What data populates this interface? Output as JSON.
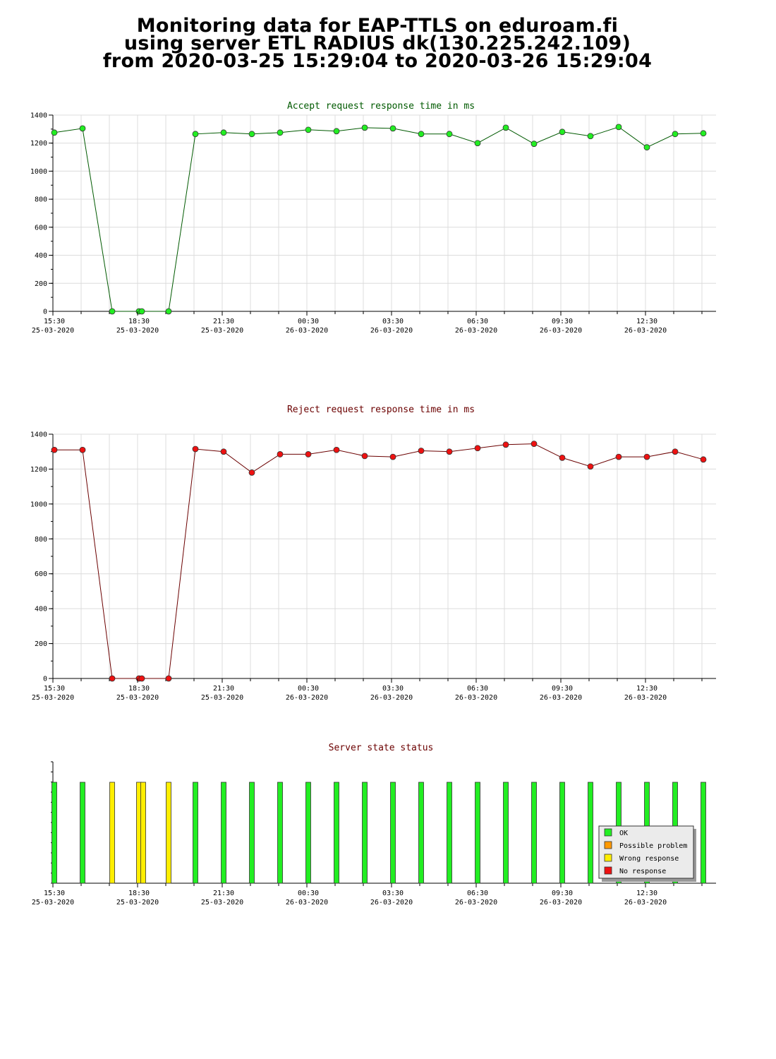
{
  "page": {
    "title_lines": [
      "Monitoring data for EAP-TTLS on eduroam.fi",
      "using server ETL RADIUS dk(130.225.242.109)",
      "from 2020-03-25 15:29:04 to 2020-03-26 15:29:04"
    ]
  },
  "colors": {
    "accept_line": "#005a00",
    "accept_marker": "#22ee22",
    "reject_line": "#6b0000",
    "reject_marker": "#ee1111",
    "accept_title": "#005a00",
    "reject_title": "#6b0000",
    "grid": "#dcdcdc",
    "status_ok": "#22ee22",
    "status_possible": "#ff9900",
    "status_wrong": "#ffee00",
    "status_none": "#ee1111"
  },
  "chart_data": [
    {
      "type": "line",
      "title": "Accept request response time in ms",
      "ylim": [
        0,
        1400
      ],
      "yticks": [
        0,
        200,
        400,
        600,
        800,
        1000,
        1200,
        1400
      ],
      "xlim_hours": [
        15.5,
        39.0
      ],
      "xtick_hours": [
        15.5,
        18.5,
        21.5,
        24.5,
        27.5,
        30.5,
        33.5,
        36.5
      ],
      "xtick_labels": [
        [
          "15:30",
          "25-03-2020"
        ],
        [
          "18:30",
          "25-03-2020"
        ],
        [
          "21:30",
          "25-03-2020"
        ],
        [
          "00:30",
          "26-03-2020"
        ],
        [
          "03:30",
          "26-03-2020"
        ],
        [
          "06:30",
          "26-03-2020"
        ],
        [
          "09:30",
          "26-03-2020"
        ],
        [
          "12:30",
          "26-03-2020"
        ]
      ],
      "grid": true,
      "points": [
        [
          15.55,
          1275
        ],
        [
          16.55,
          1305
        ],
        [
          17.6,
          0
        ],
        [
          18.55,
          0
        ],
        [
          18.65,
          0
        ],
        [
          19.6,
          0
        ],
        [
          20.55,
          1265
        ],
        [
          21.55,
          1275
        ],
        [
          22.55,
          1265
        ],
        [
          23.55,
          1275
        ],
        [
          24.55,
          1295
        ],
        [
          25.55,
          1285
        ],
        [
          26.55,
          1310
        ],
        [
          27.55,
          1305
        ],
        [
          28.55,
          1265
        ],
        [
          29.55,
          1265
        ],
        [
          30.55,
          1200
        ],
        [
          31.55,
          1310
        ],
        [
          32.55,
          1195
        ],
        [
          33.55,
          1280
        ],
        [
          34.55,
          1250
        ],
        [
          35.55,
          1315
        ],
        [
          36.55,
          1170
        ],
        [
          37.55,
          1265
        ],
        [
          38.55,
          1270
        ]
      ]
    },
    {
      "type": "line",
      "title": "Reject request response time in ms",
      "ylim": [
        0,
        1400
      ],
      "yticks": [
        0,
        200,
        400,
        600,
        800,
        1000,
        1200,
        1400
      ],
      "xlim_hours": [
        15.5,
        39.0
      ],
      "xtick_hours": [
        15.5,
        18.5,
        21.5,
        24.5,
        27.5,
        30.5,
        33.5,
        36.5
      ],
      "xtick_labels": [
        [
          "15:30",
          "25-03-2020"
        ],
        [
          "18:30",
          "25-03-2020"
        ],
        [
          "21:30",
          "25-03-2020"
        ],
        [
          "00:30",
          "26-03-2020"
        ],
        [
          "03:30",
          "26-03-2020"
        ],
        [
          "06:30",
          "26-03-2020"
        ],
        [
          "09:30",
          "26-03-2020"
        ],
        [
          "12:30",
          "26-03-2020"
        ]
      ],
      "grid": true,
      "points": [
        [
          15.55,
          1310
        ],
        [
          16.55,
          1310
        ],
        [
          17.6,
          0
        ],
        [
          18.55,
          0
        ],
        [
          18.65,
          0
        ],
        [
          19.6,
          0
        ],
        [
          20.55,
          1315
        ],
        [
          21.55,
          1300
        ],
        [
          22.55,
          1180
        ],
        [
          23.55,
          1285
        ],
        [
          24.55,
          1285
        ],
        [
          25.55,
          1310
        ],
        [
          26.55,
          1275
        ],
        [
          27.55,
          1270
        ],
        [
          28.55,
          1305
        ],
        [
          29.55,
          1300
        ],
        [
          30.55,
          1320
        ],
        [
          31.55,
          1340
        ],
        [
          32.55,
          1345
        ],
        [
          33.55,
          1265
        ],
        [
          34.55,
          1215
        ],
        [
          35.55,
          1270
        ],
        [
          36.55,
          1270
        ],
        [
          37.55,
          1300
        ],
        [
          38.55,
          1255
        ]
      ]
    },
    {
      "type": "bar",
      "title": "Server state status",
      "xlim_hours": [
        15.5,
        39.0
      ],
      "xtick_hours": [
        15.5,
        18.5,
        21.5,
        24.5,
        27.5,
        30.5,
        33.5,
        36.5
      ],
      "xtick_labels": [
        [
          "15:30",
          "25-03-2020"
        ],
        [
          "18:30",
          "25-03-2020"
        ],
        [
          "21:30",
          "25-03-2020"
        ],
        [
          "00:30",
          "26-03-2020"
        ],
        [
          "03:30",
          "26-03-2020"
        ],
        [
          "06:30",
          "26-03-2020"
        ],
        [
          "09:30",
          "26-03-2020"
        ],
        [
          "12:30",
          "26-03-2020"
        ]
      ],
      "legend": {
        "placement": "bottom-right",
        "entries": [
          {
            "label": "OK",
            "status": "ok"
          },
          {
            "label": "Possible problem",
            "status": "possible"
          },
          {
            "label": "Wrong response",
            "status": "wrong"
          },
          {
            "label": "No response",
            "status": "none"
          }
        ]
      },
      "bars": [
        [
          15.55,
          "ok"
        ],
        [
          16.55,
          "ok"
        ],
        [
          17.6,
          "wrong"
        ],
        [
          18.55,
          "wrong"
        ],
        [
          18.7,
          "wrong"
        ],
        [
          19.6,
          "wrong"
        ],
        [
          20.55,
          "ok"
        ],
        [
          21.55,
          "ok"
        ],
        [
          22.55,
          "ok"
        ],
        [
          23.55,
          "ok"
        ],
        [
          24.55,
          "ok"
        ],
        [
          25.55,
          "ok"
        ],
        [
          26.55,
          "ok"
        ],
        [
          27.55,
          "ok"
        ],
        [
          28.55,
          "ok"
        ],
        [
          29.55,
          "ok"
        ],
        [
          30.55,
          "ok"
        ],
        [
          31.55,
          "ok"
        ],
        [
          32.55,
          "ok"
        ],
        [
          33.55,
          "ok"
        ],
        [
          34.55,
          "ok"
        ],
        [
          35.55,
          "ok"
        ],
        [
          36.55,
          "ok"
        ],
        [
          37.55,
          "ok"
        ],
        [
          38.55,
          "ok"
        ]
      ]
    }
  ]
}
